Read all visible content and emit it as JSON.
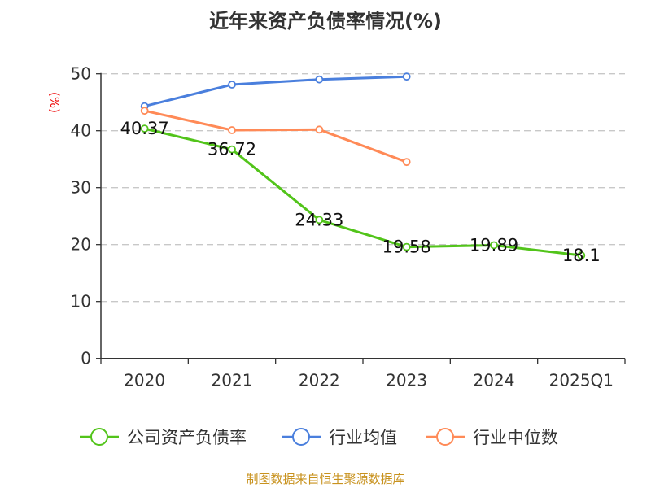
{
  "chart_data": {
    "type": "line",
    "title": "近年来资产负债率情况(%)",
    "ylabel": "(%)",
    "xlabel": "",
    "ylim": [
      0,
      50
    ],
    "yticks": [
      0,
      10,
      20,
      30,
      40,
      50
    ],
    "grid": true,
    "legend_position": "bottom",
    "categories": [
      "2020",
      "2021",
      "2022",
      "2023",
      "2024",
      "2025Q1"
    ],
    "series": [
      {
        "name": "公司资产负债率",
        "color": "#52c41a",
        "values": [
          40.37,
          36.72,
          24.33,
          19.58,
          19.89,
          18.1
        ],
        "labels": [
          "40.37",
          "36.72",
          "24.33",
          "19.58",
          "19.89",
          "18.1"
        ]
      },
      {
        "name": "行业均值",
        "color": "#4a7fdd",
        "values": [
          44.3,
          48.1,
          49.0,
          49.5,
          null,
          null
        ]
      },
      {
        "name": "行业中位数",
        "color": "#ff8a57",
        "values": [
          43.5,
          40.1,
          40.2,
          34.5,
          null,
          null
        ]
      }
    ]
  },
  "source": "制图数据来自恒生聚源数据库"
}
